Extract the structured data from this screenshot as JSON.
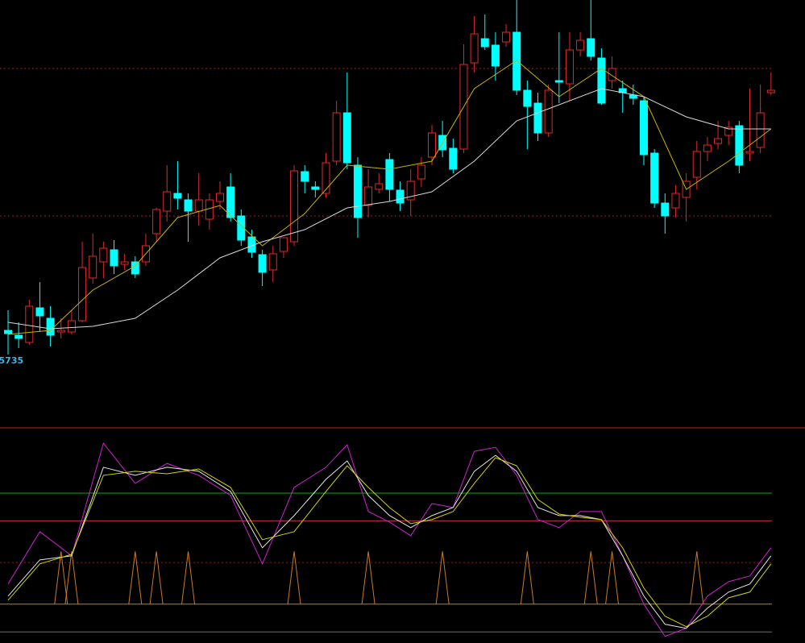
{
  "chart_data": [
    {
      "type": "candlestick",
      "open": [
        15765,
        15759,
        15750,
        15793,
        15780,
        15763,
        15763,
        15777,
        15830,
        15850,
        15865,
        15847,
        15850,
        15850,
        15885,
        15913,
        15935,
        15927,
        15913,
        15903,
        15925,
        15943,
        15907,
        15881,
        15859,
        15840,
        15863,
        15875,
        15962,
        15943,
        15935,
        15975,
        16035,
        15970,
        15920,
        15940,
        15977,
        15939,
        15927,
        15953,
        15980,
        16007,
        15991,
        15990,
        16097,
        16127,
        16119,
        16123,
        16135,
        16063,
        16047,
        16010,
        16075,
        16071,
        16113,
        16127,
        16103,
        16075,
        16065,
        16057,
        16050,
        15985,
        15923,
        15917,
        15930,
        15955,
        15987,
        15997,
        16007,
        16019,
        15985,
        15992,
        16060
      ],
      "high": [
        15790,
        15775,
        15803,
        15825,
        15795,
        15780,
        15790,
        15875,
        15885,
        15875,
        15877,
        15860,
        15857,
        15885,
        15917,
        15970,
        15975,
        15935,
        15960,
        15935,
        15950,
        15960,
        15915,
        15890,
        15865,
        15870,
        15875,
        15970,
        15970,
        15950,
        15985,
        16050,
        16085,
        15980,
        15965,
        15960,
        15985,
        15950,
        15965,
        15980,
        16020,
        16025,
        16003,
        16120,
        16155,
        16157,
        16135,
        16145,
        16175,
        16075,
        16060,
        16070,
        16135,
        16135,
        16135,
        16175,
        16115,
        16105,
        16075,
        16070,
        16055,
        15990,
        15935,
        15945,
        15960,
        16000,
        16005,
        16025,
        16025,
        16025,
        16065,
        16070,
        16085
      ],
      "low": [
        15735,
        15743,
        15747,
        15763,
        15745,
        15755,
        15760,
        15775,
        15823,
        15830,
        15835,
        15840,
        15830,
        15845,
        15875,
        15900,
        15915,
        15875,
        15895,
        15890,
        15915,
        15900,
        15870,
        15855,
        15820,
        15825,
        15855,
        15870,
        15935,
        15930,
        15930,
        15970,
        15965,
        15880,
        15905,
        15935,
        15925,
        15913,
        15907,
        15943,
        15970,
        15980,
        15960,
        15985,
        16085,
        16113,
        16075,
        16117,
        16057,
        15990,
        16000,
        16005,
        16047,
        16050,
        16105,
        16100,
        16045,
        16065,
        16035,
        16045,
        15970,
        15917,
        15885,
        15905,
        15900,
        15940,
        15975,
        15990,
        15995,
        15960,
        15975,
        15985,
        16057
      ],
      "close": [
        15761,
        15755,
        15795,
        15783,
        15759,
        15765,
        15777,
        15843,
        15857,
        15867,
        15845,
        15850,
        15835,
        15870,
        15915,
        15937,
        15929,
        15913,
        15927,
        15927,
        15935,
        15905,
        15877,
        15862,
        15837,
        15860,
        15880,
        15963,
        15950,
        15940,
        15973,
        16035,
        15973,
        15905,
        15943,
        15947,
        15940,
        15923,
        15950,
        15970,
        16010,
        15989,
        15965,
        16095,
        16133,
        16117,
        16093,
        16135,
        16063,
        16043,
        16010,
        16063,
        16073,
        16113,
        16125,
        16105,
        16047,
        16090,
        16060,
        16053,
        15983,
        15923,
        15907,
        15935,
        15950,
        15987,
        15995,
        16003,
        16017,
        15970,
        15987,
        16035,
        16063
      ],
      "up_color": "#e02828",
      "down_color": "#00ffff",
      "series": [
        {
          "x": [
            0,
            4,
            8,
            12,
            16,
            20,
            24,
            28,
            32,
            36,
            40,
            44,
            48,
            52,
            56,
            60,
            64,
            68,
            72
          ],
          "color": "#c8b400",
          "values": [
            15760,
            15765,
            15815,
            15845,
            15905,
            15920,
            15870,
            15910,
            15970,
            15965,
            15975,
            16065,
            16100,
            16055,
            16090,
            16055,
            15940,
            15975,
            16015
          ]
        },
        {
          "x": [
            0,
            4,
            8,
            12,
            16,
            20,
            24,
            28,
            32,
            36,
            40,
            44,
            48,
            52,
            56,
            60,
            64,
            68,
            72
          ],
          "color": "#d8d8d8",
          "values": [
            15775,
            15767,
            15770,
            15780,
            15815,
            15855,
            15875,
            15890,
            15917,
            15925,
            15937,
            15975,
            16025,
            16045,
            16065,
            16055,
            16030,
            16015,
            16015
          ]
        }
      ],
      "levels": [
        {
          "value": 16090,
          "color": "#a02020",
          "dashed": true
        },
        {
          "value": 15907,
          "color": "#a02020",
          "dashed": true
        }
      ],
      "ylim": [
        15645,
        16175
      ]
    },
    {
      "type": "line",
      "series": [
        {
          "x": [
            0,
            3,
            6,
            9,
            12,
            15,
            18,
            21,
            24,
            27,
            30,
            32,
            34,
            36,
            38,
            40,
            42,
            44,
            46,
            48,
            50,
            52,
            54,
            56,
            58,
            60,
            62,
            64,
            66,
            68,
            70,
            72
          ],
          "color": "#d020d0",
          "values": [
            14.5,
            52.2,
            34.8,
            115.9,
            87.0,
            101.4,
            92.8,
            78.3,
            29.0,
            84.1,
            98.6,
            114.8,
            66.7,
            59.1,
            49.3,
            72.5,
            69.6,
            110.1,
            113.0,
            92.8,
            60.9,
            55.1,
            66.7,
            66.7,
            34.8,
            0,
            -23.2,
            -17.4,
            5.8,
            16.2,
            20.3,
            40.6
          ]
        },
        {
          "x": [
            0,
            3,
            6,
            9,
            12,
            15,
            18,
            21,
            24,
            27,
            30,
            32,
            34,
            36,
            38,
            40,
            42,
            44,
            46,
            48,
            50,
            52,
            54,
            56,
            58,
            60,
            62,
            64,
            66,
            68,
            70,
            72
          ],
          "color": "#e6e6e6",
          "values": [
            5.8,
            31.9,
            34.8,
            98.6,
            92.8,
            98.6,
            95.7,
            81.2,
            40.6,
            63.8,
            89.9,
            103.2,
            78.3,
            63.8,
            55.1,
            63.8,
            69.6,
            95.7,
            107.2,
            95.7,
            69.6,
            63.8,
            63.8,
            60.9,
            34.8,
            5.8,
            -14.5,
            -17.4,
            -2.9,
            8.7,
            14.5,
            34.8
          ]
        },
        {
          "x": [
            0,
            3,
            6,
            9,
            12,
            15,
            18,
            21,
            24,
            27,
            30,
            32,
            34,
            36,
            38,
            40,
            42,
            44,
            46,
            48,
            50,
            52,
            54,
            56,
            58,
            60,
            62,
            64,
            66,
            68,
            70,
            72
          ],
          "color": "#d4d400",
          "values": [
            2.9,
            29.0,
            35.9,
            92.8,
            95.7,
            93.9,
            97.4,
            84.1,
            46.4,
            52.2,
            81.2,
            99.7,
            84.1,
            69.6,
            58.0,
            60.9,
            66.7,
            87.0,
            105.5,
            99.7,
            75.4,
            64.9,
            62.6,
            60.9,
            40.6,
            11.6,
            -8.7,
            -16.2,
            -8.7,
            4.6,
            8.7,
            29.0
          ]
        }
      ],
      "signals": {
        "x": [
          5,
          6,
          12,
          14,
          17,
          27,
          34,
          41,
          49,
          55,
          57,
          65
        ],
        "values": [
          38,
          38,
          38,
          38,
          38,
          38,
          38,
          38,
          38,
          38,
          38,
          38
        ],
        "color": "#c87a2a"
      },
      "levels": [
        {
          "value": 80,
          "color": "#00b000",
          "dashed": false
        },
        {
          "value": 60,
          "color": "#c0304a",
          "dashed": false
        },
        {
          "value": 30,
          "color": "#8a1c1c",
          "dashed": true
        },
        {
          "value": 0,
          "color": "#b8860b",
          "dashed": false
        },
        {
          "value": -20,
          "color": "#707070",
          "dashed": false
        }
      ],
      "ylim": [
        -28,
        127
      ]
    }
  ]
}
